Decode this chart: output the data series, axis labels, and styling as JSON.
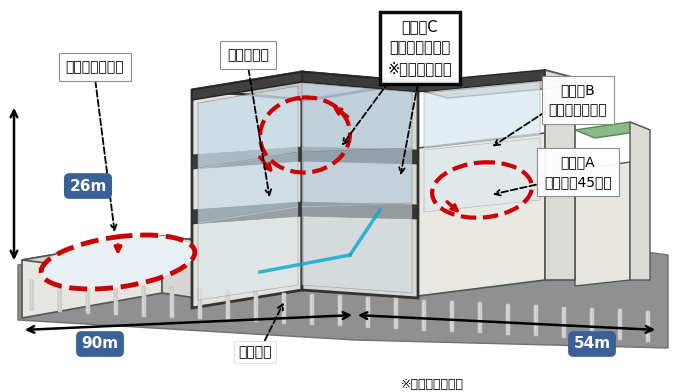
{
  "bg_color": "#ffffff",
  "fig_width": 6.92,
  "fig_height": 3.92,
  "labels": {
    "synchrotron": "シンクロトロン",
    "linac": "線形加速器",
    "room_c": "治療室C\n（水平・垂直）\n※今回受注対象",
    "room_b": "治療室B\n（水平・垂直）",
    "room_a": "治療室A\n（水平・45度）",
    "ion_source": "イオン源",
    "dim_26m": "26m",
    "dim_90m": "90m",
    "dim_54m": "54m",
    "credit": "※大成建設㈱提供"
  },
  "blue_box_color": "#3a6098",
  "red_color": "#cc0000",
  "dark_gray": "#444444",
  "mid_gray": "#888888",
  "light_gray": "#dddddd",
  "cream": "#f0ede8",
  "dark_wall": "#555555",
  "floor_color": "#999999",
  "green_color": "#7ab87a",
  "blue_glass": "#b8d4e8",
  "white": "#ffffff"
}
